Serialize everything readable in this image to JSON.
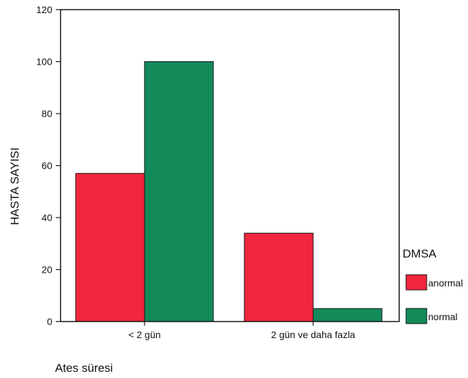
{
  "chart_data": {
    "type": "bar",
    "xlabel": "Ates süresi",
    "ylabel": "HASTA SAYISI",
    "categories": [
      "< 2 gün",
      "2 gün ve daha fazla"
    ],
    "series": [
      {
        "name": "anormal",
        "values": [
          57,
          34
        ],
        "color": "#f0263c"
      },
      {
        "name": "normal",
        "values": [
          100,
          5
        ],
        "color": "#138a5a"
      }
    ],
    "ylim": [
      0,
      120
    ],
    "yticks": [
      0,
      20,
      40,
      60,
      80,
      100,
      120
    ],
    "grid": false,
    "legend": {
      "title": "DMSA",
      "placement": "right"
    }
  }
}
